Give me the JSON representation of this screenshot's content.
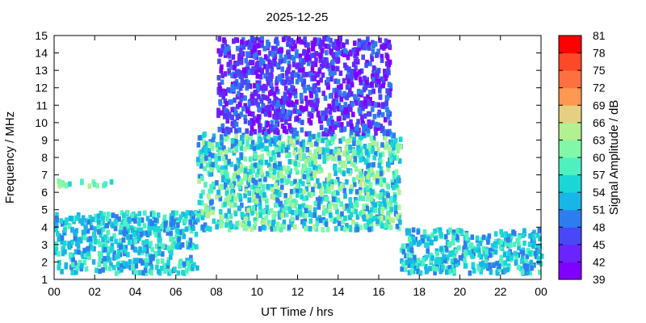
{
  "chart_data": {
    "type": "heatmap",
    "title": "2025-12-25",
    "xlabel": "UT Time / hrs",
    "ylabel": "Frequency / MHz",
    "colorbar_label": "Signal Amplitude / dB",
    "xlim": [
      0,
      24
    ],
    "ylim": [
      1,
      15
    ],
    "x_ticks": [
      "00",
      "02",
      "04",
      "06",
      "08",
      "10",
      "12",
      "14",
      "16",
      "18",
      "20",
      "22",
      "00"
    ],
    "y_ticks": [
      "1",
      "2",
      "3",
      "4",
      "5",
      "6",
      "7",
      "8",
      "9",
      "10",
      "11",
      "12",
      "13",
      "14",
      "15"
    ],
    "colorbar_ticks": [
      "39",
      "42",
      "45",
      "48",
      "51",
      "54",
      "57",
      "60",
      "63",
      "66",
      "69",
      "72",
      "75",
      "78",
      "81"
    ],
    "colorbar_range": [
      39,
      81
    ],
    "colorbar_colors": [
      "#8000ff",
      "#6a24ff",
      "#4848f8",
      "#2e7df0",
      "#18b6e6",
      "#1ad6d6",
      "#4ef0c0",
      "#80f8a8",
      "#b2f090",
      "#e4d080",
      "#ff9850",
      "#ff7040",
      "#ff4828",
      "#ff0000"
    ],
    "grid": false,
    "description_regions": [
      {
        "x_range": [
          0,
          7
        ],
        "y_range": [
          1.5,
          5
        ],
        "amplitude_range": [
          48,
          60
        ]
      },
      {
        "x_range": [
          0,
          2.8
        ],
        "y_range": [
          6.5,
          6.8
        ],
        "amplitude_range": [
          54,
          66
        ]
      },
      {
        "x_range": [
          7,
          17
        ],
        "y_range": [
          4,
          9.5
        ],
        "amplitude_range": [
          48,
          66
        ]
      },
      {
        "x_range": [
          8,
          16.5
        ],
        "y_range": [
          9.5,
          15
        ],
        "amplitude_range": [
          39,
          51
        ]
      },
      {
        "x_range": [
          17,
          24
        ],
        "y_range": [
          1.5,
          4
        ],
        "amplitude_range": [
          48,
          60
        ]
      }
    ]
  }
}
